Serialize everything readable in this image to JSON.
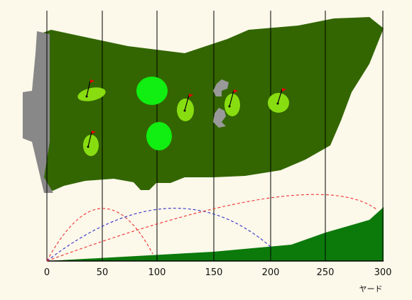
{
  "range": {
    "unit": "ヤード",
    "x_ticks": [
      0,
      50,
      100,
      150,
      200,
      250,
      300
    ],
    "max_yards": 300
  },
  "colors": {
    "background": "#fcf8ea",
    "fairway_rough": "#336600",
    "ground_profile": "#0b7a0b",
    "tee_platform": "#888888",
    "target_green": "#88dd11",
    "round_green": "#11ee11",
    "flag": "#ee0000",
    "bunker": "#999999",
    "trajectory_red": "#ee3333",
    "trajectory_blue": "#3333cc",
    "grid_line": "#000000"
  },
  "targets": [
    {
      "id": "target-1",
      "yards": 40
    },
    {
      "id": "target-2",
      "yards": 40
    },
    {
      "id": "target-3",
      "yards": 125
    },
    {
      "id": "target-4",
      "yards": 165
    },
    {
      "id": "target-5",
      "yards": 210
    }
  ],
  "round_greens": [
    {
      "id": "round-green-1",
      "yards": 95
    },
    {
      "id": "round-green-2",
      "yards": 100
    }
  ],
  "trajectories": [
    {
      "id": "shot-a",
      "color": "red",
      "carry_yards": 95
    },
    {
      "id": "shot-b",
      "color": "blue",
      "carry_yards": 200
    },
    {
      "id": "shot-c",
      "color": "red",
      "carry_yards": 300
    }
  ]
}
